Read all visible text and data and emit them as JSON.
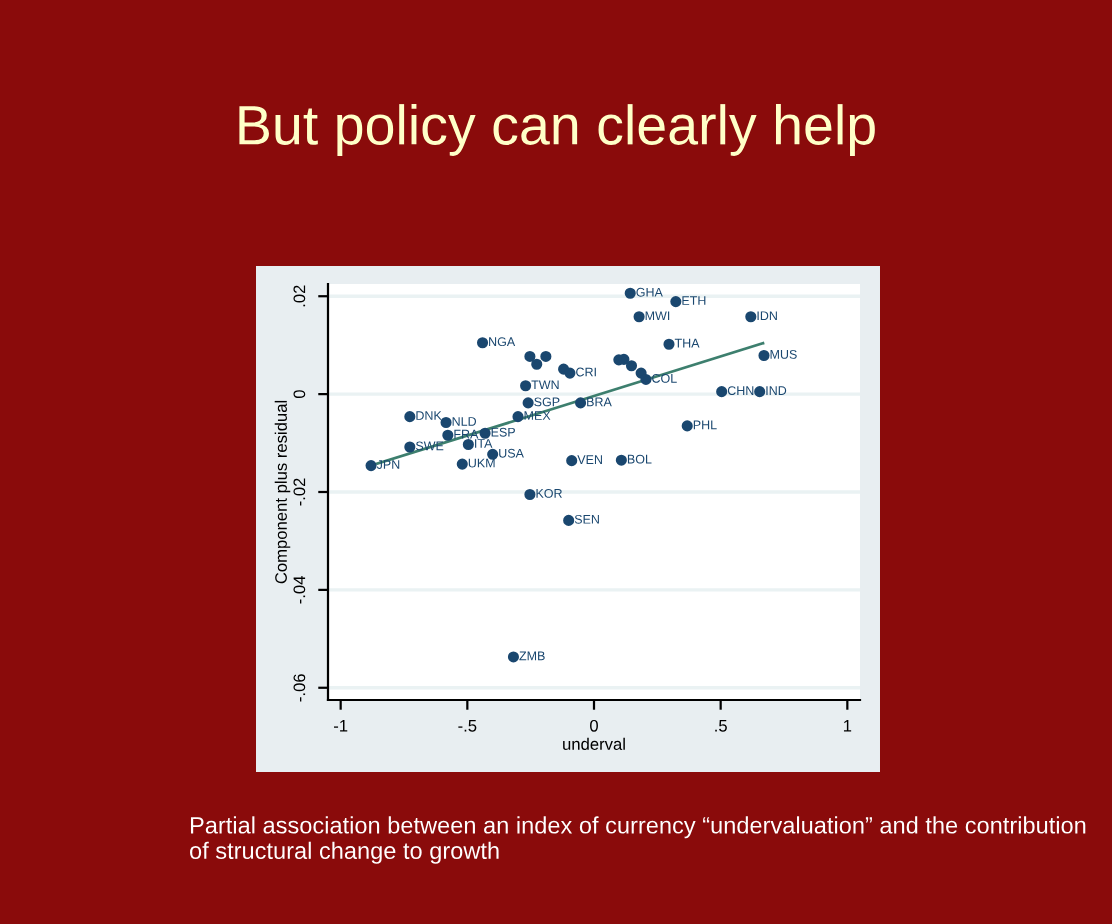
{
  "chart_data": {
    "type": "scatter",
    "title": "But policy can clearly help",
    "xlabel": "underval",
    "ylabel": "Component plus residual",
    "xlim": [
      -1.05,
      1.05
    ],
    "ylim": [
      -0.0625,
      0.0225
    ],
    "xticks": [
      {
        "value": -1,
        "label": "-1"
      },
      {
        "value": -0.5,
        "label": "-.5"
      },
      0,
      {
        "value": 0.5,
        "label": ".5"
      },
      1
    ],
    "yticks": [
      {
        "value": 0.02,
        "label": ".02"
      },
      0,
      {
        "value": -0.02,
        "label": "-.02"
      },
      {
        "value": -0.04,
        "label": "-.04"
      },
      {
        "value": -0.06,
        "label": "-.06"
      }
    ],
    "grid": "y",
    "series": [
      {
        "marker": "circle",
        "color": "#1a476f",
        "x": [
          -0.44,
          -0.253,
          -0.226,
          -0.19,
          -0.12,
          -0.095,
          -0.27,
          -0.26,
          -0.3,
          -0.053,
          -0.727,
          -0.584,
          -0.577,
          -0.43,
          -0.496,
          -0.727,
          -0.4,
          -0.52,
          -0.88,
          -0.253,
          -0.088,
          -0.1,
          -0.318,
          0.143,
          0.323,
          0.178,
          0.619,
          0.296,
          0.671,
          0.098,
          0.118,
          0.148,
          0.186,
          0.205,
          0.504,
          0.654,
          0.368,
          0.108
        ],
        "values": [
          0.0105,
          0.0077,
          0.0061,
          0.0077,
          0.0051,
          0.0043,
          0.0017,
          -0.0018,
          -0.0046,
          -0.0018,
          -0.0046,
          -0.0058,
          -0.0084,
          -0.008,
          -0.0103,
          -0.0108,
          -0.0123,
          -0.0143,
          -0.0146,
          -0.0205,
          -0.0136,
          -0.0258,
          -0.0537,
          0.0206,
          0.0189,
          0.0158,
          0.0158,
          0.0102,
          0.0079,
          0.007,
          0.0071,
          0.0058,
          0.0043,
          0.003,
          0.0005,
          0.0005,
          -0.0065,
          -0.0135
        ]
      },
      {
        "type": "line",
        "color": "#3d7f6e",
        "x": [
          -0.855,
          0.667
        ],
        "values": [
          -0.0142,
          0.0104
        ]
      }
    ],
    "annotations": [
      {
        "text": "NGA",
        "x": -0.44,
        "y": 0.0105
      },
      {
        "text": "CRI",
        "x": -0.095,
        "y": 0.0043
      },
      {
        "text": "TWN",
        "x": -0.27,
        "y": 0.0017
      },
      {
        "text": "SGP",
        "x": -0.26,
        "y": -0.0018
      },
      {
        "text": "MEX",
        "x": -0.3,
        "y": -0.0046
      },
      {
        "text": "BRA",
        "x": -0.053,
        "y": -0.0018
      },
      {
        "text": "DNK",
        "x": -0.727,
        "y": -0.0046
      },
      {
        "text": "NLD",
        "x": -0.584,
        "y": -0.0058
      },
      {
        "text": "FRA",
        "x": -0.577,
        "y": -0.0084
      },
      {
        "text": "ESP",
        "x": -0.43,
        "y": -0.008
      },
      {
        "text": "ITA",
        "x": -0.496,
        "y": -0.0103
      },
      {
        "text": "SWE",
        "x": -0.727,
        "y": -0.0108
      },
      {
        "text": "USA",
        "x": -0.4,
        "y": -0.0123
      },
      {
        "text": "UKM",
        "x": -0.52,
        "y": -0.0143
      },
      {
        "text": "JPN",
        "x": -0.88,
        "y": -0.0146
      },
      {
        "text": "KOR",
        "x": -0.253,
        "y": -0.0205
      },
      {
        "text": "VEN",
        "x": -0.088,
        "y": -0.0136
      },
      {
        "text": "SEN",
        "x": -0.1,
        "y": -0.0258
      },
      {
        "text": "ZMB",
        "x": -0.318,
        "y": -0.0537
      },
      {
        "text": "GHA",
        "x": 0.143,
        "y": 0.0206
      },
      {
        "text": "ETH",
        "x": 0.323,
        "y": 0.0189
      },
      {
        "text": "MWI",
        "x": 0.178,
        "y": 0.0158
      },
      {
        "text": "IDN",
        "x": 0.619,
        "y": 0.0158
      },
      {
        "text": "THA",
        "x": 0.296,
        "y": 0.0102
      },
      {
        "text": "MUS",
        "x": 0.671,
        "y": 0.0079
      },
      {
        "text": "COL",
        "x": 0.205,
        "y": 0.003
      },
      {
        "text": "CHN",
        "x": 0.504,
        "y": 0.0005
      },
      {
        "text": "IND",
        "x": 0.654,
        "y": 0.0005
      },
      {
        "text": "PHL",
        "x": 0.368,
        "y": -0.0065
      },
      {
        "text": "BOL",
        "x": 0.108,
        "y": -0.0135
      },
      "Partial association between an index of currency “undervaluation” and the contribution of structural change to growth"
    ]
  }
}
